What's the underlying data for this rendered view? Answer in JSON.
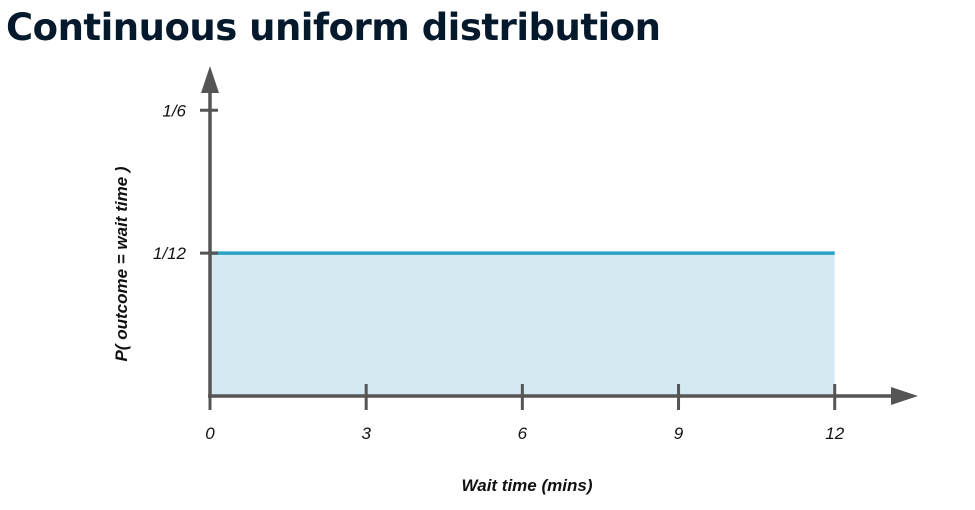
{
  "page": {
    "title": "Continuous uniform distribution"
  },
  "colors": {
    "axis": "#555555",
    "line": "#2ba3c7",
    "fill": "#d5e9f2",
    "title": "#05192d"
  },
  "chart_data": {
    "type": "area",
    "title": "",
    "xlabel": "Wait time (mins)",
    "ylabel": "P( outcome  = wait time )",
    "x": [
      0,
      12
    ],
    "y": [
      0.0833333,
      0.0833333
    ],
    "xlim": [
      0,
      13.6
    ],
    "ylim": [
      0,
      0.1925
    ],
    "x_ticks": [
      {
        "value": 0,
        "label": "0"
      },
      {
        "value": 3,
        "label": "3"
      },
      {
        "value": 6,
        "label": "6"
      },
      {
        "value": 9,
        "label": "9"
      },
      {
        "value": 12,
        "label": "12"
      }
    ],
    "y_ticks": [
      {
        "value": 0.0833333,
        "label": "1/12"
      },
      {
        "value": 0.1666667,
        "label": "1/6"
      }
    ],
    "grid": false,
    "legend": "none"
  }
}
